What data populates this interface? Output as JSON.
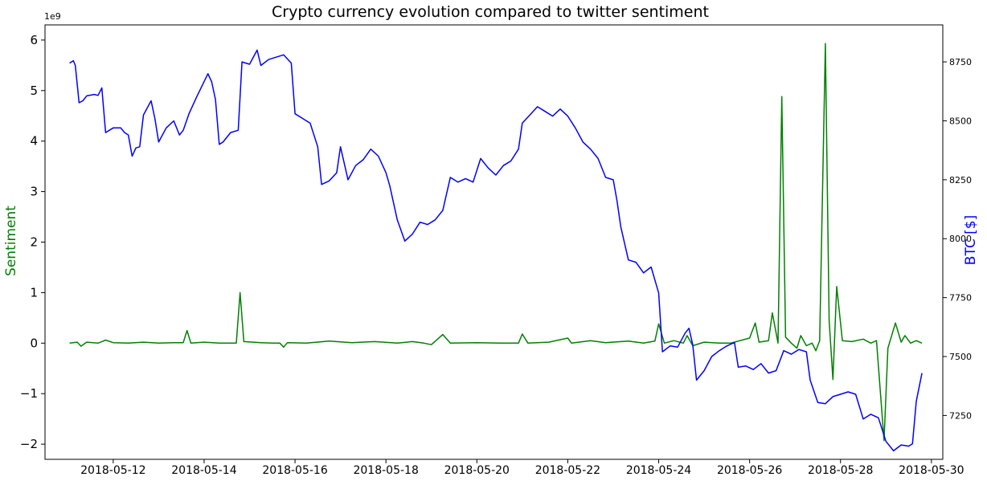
{
  "chart_data": {
    "type": "line",
    "title": "Crypto currency evolution compared to twitter sentiment",
    "xlabel": "",
    "ylabel_left": "Sentiment",
    "ylabel_right": "BTC [$]",
    "left_offset_text": "1e9",
    "left_ylim": [
      -2.3,
      6.3
    ],
    "right_ylim": [
      7064,
      8907
    ],
    "xlim": [
      "2018-05-10T12:00",
      "2018-05-30T06:00"
    ],
    "x_ticks": [
      "2018-05-12",
      "2018-05-14",
      "2018-05-16",
      "2018-05-18",
      "2018-05-20",
      "2018-05-22",
      "2018-05-24",
      "2018-05-26",
      "2018-05-28",
      "2018-05-30"
    ],
    "left_ticks": [
      -2,
      -1,
      0,
      1,
      2,
      3,
      4,
      5,
      6
    ],
    "left_tick_labels": [
      "−2",
      "−1",
      "0",
      "1",
      "2",
      "3",
      "4",
      "5",
      "6"
    ],
    "right_ticks": [
      7250,
      7500,
      7750,
      8000,
      8250,
      8500,
      8750
    ],
    "grid": false,
    "legend": "none",
    "colors": {
      "sentiment": "#008000",
      "btc": "#0000ff"
    },
    "series": [
      {
        "name": "Sentiment",
        "axis": "left",
        "color": "#008000",
        "points": [
          [
            "2018-05-11T01:00",
            0.0
          ],
          [
            "2018-05-11T05:00",
            0.02
          ],
          [
            "2018-05-11T07:00",
            -0.06
          ],
          [
            "2018-05-11T10:00",
            0.02
          ],
          [
            "2018-05-11T16:00",
            0.0
          ],
          [
            "2018-05-11T20:00",
            0.06
          ],
          [
            "2018-05-12T00:00",
            0.01
          ],
          [
            "2018-05-12T08:00",
            0.0
          ],
          [
            "2018-05-12T16:00",
            0.02
          ],
          [
            "2018-05-13T00:00",
            0.0
          ],
          [
            "2018-05-13T08:00",
            0.01
          ],
          [
            "2018-05-13T13:00",
            0.01
          ],
          [
            "2018-05-13T15:00",
            0.25
          ],
          [
            "2018-05-13T17:00",
            0.0
          ],
          [
            "2018-05-14T00:00",
            0.02
          ],
          [
            "2018-05-14T08:00",
            0.0
          ],
          [
            "2018-05-14T14:00",
            0.0
          ],
          [
            "2018-05-14T17:00",
            0.0
          ],
          [
            "2018-05-14T19:00",
            1.0
          ],
          [
            "2018-05-14T21:00",
            0.03
          ],
          [
            "2018-05-15T06:00",
            0.01
          ],
          [
            "2018-05-15T12:00",
            0.0
          ],
          [
            "2018-05-15T16:00",
            0.0
          ],
          [
            "2018-05-15T18:00",
            -0.08
          ],
          [
            "2018-05-15T20:00",
            0.01
          ],
          [
            "2018-05-16T06:00",
            0.0
          ],
          [
            "2018-05-16T18:00",
            0.04
          ],
          [
            "2018-05-17T06:00",
            0.01
          ],
          [
            "2018-05-17T18:00",
            0.03
          ],
          [
            "2018-05-18T06:00",
            0.0
          ],
          [
            "2018-05-18T14:00",
            0.03
          ],
          [
            "2018-05-18T20:00",
            0.0
          ],
          [
            "2018-05-19T00:00",
            -0.03
          ],
          [
            "2018-05-19T06:00",
            0.17
          ],
          [
            "2018-05-19T10:00",
            0.0
          ],
          [
            "2018-05-20T00:00",
            0.01
          ],
          [
            "2018-05-20T12:00",
            0.0
          ],
          [
            "2018-05-20T22:00",
            0.0
          ],
          [
            "2018-05-21T00:00",
            0.18
          ],
          [
            "2018-05-21T03:00",
            0.0
          ],
          [
            "2018-05-21T14:00",
            0.02
          ],
          [
            "2018-05-22T00:00",
            0.1
          ],
          [
            "2018-05-22T02:00",
            0.0
          ],
          [
            "2018-05-22T12:00",
            0.05
          ],
          [
            "2018-05-22T20:00",
            0.01
          ],
          [
            "2018-05-23T08:00",
            0.04
          ],
          [
            "2018-05-23T16:00",
            0.0
          ],
          [
            "2018-05-23T22:00",
            0.04
          ],
          [
            "2018-05-24T00:00",
            0.38
          ],
          [
            "2018-05-24T03:00",
            0.0
          ],
          [
            "2018-05-24T08:00",
            0.05
          ],
          [
            "2018-05-24T13:00",
            0.0
          ],
          [
            "2018-05-24T15:00",
            0.15
          ],
          [
            "2018-05-24T18:00",
            -0.05
          ],
          [
            "2018-05-25T00:00",
            0.02
          ],
          [
            "2018-05-25T08:00",
            0.0
          ],
          [
            "2018-05-25T14:00",
            0.0
          ],
          [
            "2018-05-26T00:00",
            0.1
          ],
          [
            "2018-05-26T03:00",
            0.4
          ],
          [
            "2018-05-26T05:00",
            0.02
          ],
          [
            "2018-05-26T10:00",
            0.05
          ],
          [
            "2018-05-26T12:00",
            0.6
          ],
          [
            "2018-05-26T15:00",
            0.0
          ],
          [
            "2018-05-26T17:00",
            4.88
          ],
          [
            "2018-05-26T19:00",
            0.12
          ],
          [
            "2018-05-26T22:00",
            0.0
          ],
          [
            "2018-05-27T01:00",
            -0.1
          ],
          [
            "2018-05-27T03:00",
            0.15
          ],
          [
            "2018-05-27T06:00",
            -0.05
          ],
          [
            "2018-05-27T09:00",
            0.0
          ],
          [
            "2018-05-27T11:00",
            -0.15
          ],
          [
            "2018-05-27T13:00",
            0.05
          ],
          [
            "2018-05-27T16:00",
            5.93
          ],
          [
            "2018-05-27T18:00",
            0.45
          ],
          [
            "2018-05-27T20:00",
            -0.72
          ],
          [
            "2018-05-27T22:00",
            1.12
          ],
          [
            "2018-05-28T01:00",
            0.05
          ],
          [
            "2018-05-28T06:00",
            0.03
          ],
          [
            "2018-05-28T12:00",
            0.08
          ],
          [
            "2018-05-28T16:00",
            0.0
          ],
          [
            "2018-05-28T19:00",
            0.05
          ],
          [
            "2018-05-28T23:00",
            -1.93
          ],
          [
            "2018-05-29T01:00",
            -0.1
          ],
          [
            "2018-05-29T05:00",
            0.4
          ],
          [
            "2018-05-29T08:00",
            0.02
          ],
          [
            "2018-05-29T10:00",
            0.15
          ],
          [
            "2018-05-29T13:00",
            0.0
          ],
          [
            "2018-05-29T16:00",
            0.05
          ],
          [
            "2018-05-29T19:00",
            0.0
          ]
        ]
      },
      {
        "name": "BTC [$]",
        "axis": "right",
        "color": "#0000ff",
        "points": [
          [
            "2018-05-11T01:00",
            8745
          ],
          [
            "2018-05-11T03:00",
            8755
          ],
          [
            "2018-05-11T04:00",
            8735
          ],
          [
            "2018-05-11T06:00",
            8577
          ],
          [
            "2018-05-11T08:00",
            8585
          ],
          [
            "2018-05-11T10:00",
            8606
          ],
          [
            "2018-05-11T14:00",
            8612
          ],
          [
            "2018-05-11T16:00",
            8608
          ],
          [
            "2018-05-11T18:00",
            8640
          ],
          [
            "2018-05-11T20:00",
            8450
          ],
          [
            "2018-05-12T00:00",
            8470
          ],
          [
            "2018-05-12T04:00",
            8470
          ],
          [
            "2018-05-12T06:00",
            8450
          ],
          [
            "2018-05-12T08:00",
            8440
          ],
          [
            "2018-05-12T10:00",
            8350
          ],
          [
            "2018-05-12T12:00",
            8385
          ],
          [
            "2018-05-12T14:00",
            8390
          ],
          [
            "2018-05-12T16:00",
            8525
          ],
          [
            "2018-05-12T20:00",
            8585
          ],
          [
            "2018-05-12T22:00",
            8510
          ],
          [
            "2018-05-13T00:00",
            8410
          ],
          [
            "2018-05-13T04:00",
            8470
          ],
          [
            "2018-05-13T08:00",
            8500
          ],
          [
            "2018-05-13T11:00",
            8440
          ],
          [
            "2018-05-13T13:00",
            8460
          ],
          [
            "2018-05-13T16:00",
            8530
          ],
          [
            "2018-05-13T20:00",
            8600
          ],
          [
            "2018-05-13T23:00",
            8650
          ],
          [
            "2018-05-14T02:00",
            8700
          ],
          [
            "2018-05-14T04:00",
            8665
          ],
          [
            "2018-05-14T06:00",
            8590
          ],
          [
            "2018-05-14T08:00",
            8400
          ],
          [
            "2018-05-14T10:00",
            8410
          ],
          [
            "2018-05-14T14:00",
            8450
          ],
          [
            "2018-05-14T18:00",
            8460
          ],
          [
            "2018-05-14T20:00",
            8750
          ],
          [
            "2018-05-15T00:00",
            8740
          ],
          [
            "2018-05-15T04:00",
            8800
          ],
          [
            "2018-05-15T06:00",
            8735
          ],
          [
            "2018-05-15T10:00",
            8760
          ],
          [
            "2018-05-15T14:00",
            8770
          ],
          [
            "2018-05-15T18:00",
            8780
          ],
          [
            "2018-05-15T22:00",
            8745
          ],
          [
            "2018-05-16T00:00",
            8530
          ],
          [
            "2018-05-16T04:00",
            8510
          ],
          [
            "2018-05-16T08:00",
            8490
          ],
          [
            "2018-05-16T12:00",
            8390
          ],
          [
            "2018-05-16T14:00",
            8230
          ],
          [
            "2018-05-16T18:00",
            8245
          ],
          [
            "2018-05-16T22:00",
            8280
          ],
          [
            "2018-05-17T00:00",
            8390
          ],
          [
            "2018-05-17T04:00",
            8250
          ],
          [
            "2018-05-17T08:00",
            8310
          ],
          [
            "2018-05-17T12:00",
            8335
          ],
          [
            "2018-05-17T16:00",
            8380
          ],
          [
            "2018-05-17T20:00",
            8350
          ],
          [
            "2018-05-18T00:00",
            8280
          ],
          [
            "2018-05-18T02:00",
            8225
          ],
          [
            "2018-05-18T06:00",
            8080
          ],
          [
            "2018-05-18T10:00",
            7990
          ],
          [
            "2018-05-18T14:00",
            8020
          ],
          [
            "2018-05-18T18:00",
            8070
          ],
          [
            "2018-05-18T22:00",
            8060
          ],
          [
            "2018-05-19T02:00",
            8080
          ],
          [
            "2018-05-19T06:00",
            8120
          ],
          [
            "2018-05-19T10:00",
            8260
          ],
          [
            "2018-05-19T14:00",
            8240
          ],
          [
            "2018-05-19T18:00",
            8255
          ],
          [
            "2018-05-19T22:00",
            8240
          ],
          [
            "2018-05-20T02:00",
            8340
          ],
          [
            "2018-05-20T06:00",
            8300
          ],
          [
            "2018-05-20T10:00",
            8270
          ],
          [
            "2018-05-20T14:00",
            8310
          ],
          [
            "2018-05-20T18:00",
            8330
          ],
          [
            "2018-05-20T22:00",
            8380
          ],
          [
            "2018-05-21T00:00",
            8490
          ],
          [
            "2018-05-21T04:00",
            8525
          ],
          [
            "2018-05-21T08:00",
            8560
          ],
          [
            "2018-05-21T12:00",
            8540
          ],
          [
            "2018-05-21T16:00",
            8520
          ],
          [
            "2018-05-21T20:00",
            8550
          ],
          [
            "2018-05-22T00:00",
            8520
          ],
          [
            "2018-05-22T04:00",
            8470
          ],
          [
            "2018-05-22T08:00",
            8410
          ],
          [
            "2018-05-22T12:00",
            8380
          ],
          [
            "2018-05-22T16:00",
            8340
          ],
          [
            "2018-05-22T20:00",
            8260
          ],
          [
            "2018-05-23T00:00",
            8250
          ],
          [
            "2018-05-23T02:00",
            8160
          ],
          [
            "2018-05-23T04:00",
            8050
          ],
          [
            "2018-05-23T08:00",
            7910
          ],
          [
            "2018-05-23T12:00",
            7900
          ],
          [
            "2018-05-23T16:00",
            7855
          ],
          [
            "2018-05-23T20:00",
            7880
          ],
          [
            "2018-05-24T00:00",
            7770
          ],
          [
            "2018-05-24T02:00",
            7520
          ],
          [
            "2018-05-24T06:00",
            7545
          ],
          [
            "2018-05-24T10:00",
            7540
          ],
          [
            "2018-05-24T14:00",
            7600
          ],
          [
            "2018-05-24T16:00",
            7620
          ],
          [
            "2018-05-24T18:00",
            7550
          ],
          [
            "2018-05-24T20:00",
            7400
          ],
          [
            "2018-05-25T00:00",
            7440
          ],
          [
            "2018-05-25T04:00",
            7500
          ],
          [
            "2018-05-25T08:00",
            7525
          ],
          [
            "2018-05-25T12:00",
            7545
          ],
          [
            "2018-05-25T16:00",
            7560
          ],
          [
            "2018-05-25T18:00",
            7455
          ],
          [
            "2018-05-25T22:00",
            7460
          ],
          [
            "2018-05-26T02:00",
            7445
          ],
          [
            "2018-05-26T06:00",
            7470
          ],
          [
            "2018-05-26T10:00",
            7430
          ],
          [
            "2018-05-26T14:00",
            7440
          ],
          [
            "2018-05-26T18:00",
            7525
          ],
          [
            "2018-05-26T22:00",
            7510
          ],
          [
            "2018-05-27T02:00",
            7530
          ],
          [
            "2018-05-27T06:00",
            7520
          ],
          [
            "2018-05-27T08:00",
            7400
          ],
          [
            "2018-05-27T12:00",
            7305
          ],
          [
            "2018-05-27T16:00",
            7300
          ],
          [
            "2018-05-27T20:00",
            7330
          ],
          [
            "2018-05-28T00:00",
            7340
          ],
          [
            "2018-05-28T04:00",
            7350
          ],
          [
            "2018-05-28T08:00",
            7340
          ],
          [
            "2018-05-28T12:00",
            7235
          ],
          [
            "2018-05-28T16:00",
            7255
          ],
          [
            "2018-05-28T20:00",
            7240
          ],
          [
            "2018-05-29T00:00",
            7140
          ],
          [
            "2018-05-29T04:00",
            7100
          ],
          [
            "2018-05-29T08:00",
            7125
          ],
          [
            "2018-05-29T12:00",
            7120
          ],
          [
            "2018-05-29T14:00",
            7130
          ],
          [
            "2018-05-29T16:00",
            7310
          ],
          [
            "2018-05-29T19:00",
            7430
          ]
        ]
      }
    ]
  }
}
